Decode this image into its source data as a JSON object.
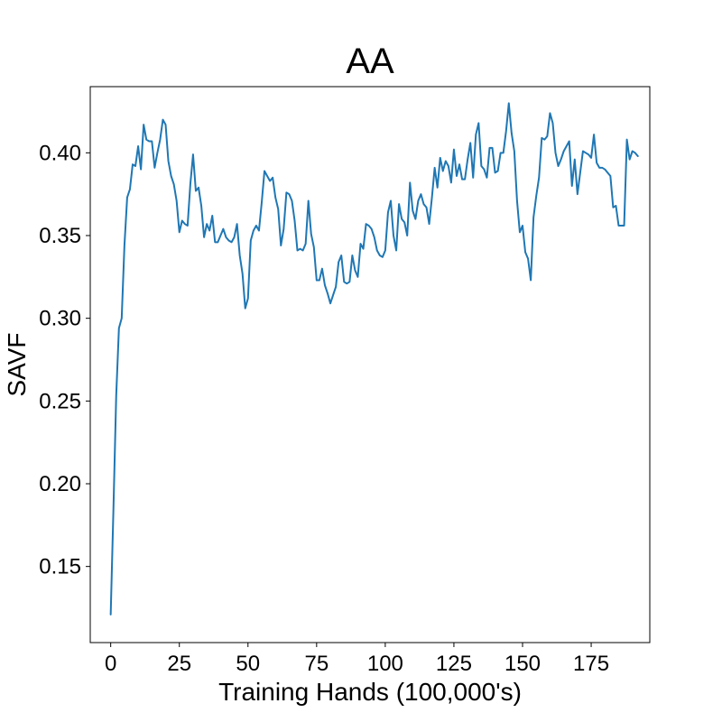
{
  "chart_data": {
    "type": "line",
    "title": "AA",
    "xlabel": "Training Hands (100,000's)",
    "ylabel": "SAVF",
    "xlim": [
      -7.45,
      196.35
    ],
    "ylim": [
      0.104,
      0.44
    ],
    "xticks": [
      0,
      25,
      50,
      75,
      100,
      125,
      150,
      175
    ],
    "yticks": [
      0.15,
      0.2,
      0.25,
      0.3,
      0.35,
      0.4
    ],
    "ytick_labels": [
      "0.15",
      "0.20",
      "0.25",
      "0.30",
      "0.35",
      "0.40"
    ],
    "grid": false,
    "legend": "none",
    "series": [
      {
        "color": "#1f77b4",
        "values": [
          0.121,
          0.185,
          0.253,
          0.294,
          0.3,
          0.344,
          0.373,
          0.378,
          0.393,
          0.392,
          0.404,
          0.39,
          0.417,
          0.408,
          0.407,
          0.407,
          0.391,
          0.4,
          0.408,
          0.42,
          0.417,
          0.395,
          0.386,
          0.381,
          0.371,
          0.352,
          0.359,
          0.357,
          0.356,
          0.381,
          0.399,
          0.377,
          0.379,
          0.368,
          0.349,
          0.357,
          0.353,
          0.362,
          0.346,
          0.346,
          0.35,
          0.354,
          0.349,
          0.347,
          0.346,
          0.349,
          0.357,
          0.338,
          0.327,
          0.306,
          0.312,
          0.347,
          0.353,
          0.356,
          0.353,
          0.37,
          0.389,
          0.386,
          0.383,
          0.385,
          0.373,
          0.366,
          0.344,
          0.354,
          0.376,
          0.375,
          0.371,
          0.359,
          0.341,
          0.342,
          0.341,
          0.345,
          0.371,
          0.351,
          0.343,
          0.323,
          0.323,
          0.33,
          0.32,
          0.315,
          0.309,
          0.314,
          0.319,
          0.334,
          0.338,
          0.322,
          0.321,
          0.322,
          0.338,
          0.329,
          0.325,
          0.345,
          0.342,
          0.357,
          0.356,
          0.354,
          0.349,
          0.341,
          0.338,
          0.337,
          0.341,
          0.364,
          0.371,
          0.35,
          0.341,
          0.369,
          0.36,
          0.358,
          0.35,
          0.382,
          0.365,
          0.36,
          0.371,
          0.375,
          0.369,
          0.367,
          0.357,
          0.373,
          0.391,
          0.379,
          0.397,
          0.389,
          0.395,
          0.392,
          0.382,
          0.402,
          0.386,
          0.393,
          0.384,
          0.384,
          0.396,
          0.406,
          0.385,
          0.411,
          0.418,
          0.392,
          0.39,
          0.385,
          0.403,
          0.403,
          0.388,
          0.389,
          0.4,
          0.4,
          0.413,
          0.43,
          0.412,
          0.401,
          0.371,
          0.352,
          0.356,
          0.34,
          0.336,
          0.323,
          0.361,
          0.374,
          0.385,
          0.409,
          0.408,
          0.41,
          0.424,
          0.418,
          0.4,
          0.392,
          0.396,
          0.401,
          0.404,
          0.407,
          0.38,
          0.396,
          0.375,
          0.388,
          0.401,
          0.4,
          0.399,
          0.397,
          0.411,
          0.394,
          0.391,
          0.391,
          0.39,
          0.388,
          0.386,
          0.367,
          0.368,
          0.356,
          0.356,
          0.356,
          0.408,
          0.396,
          0.401,
          0.4,
          0.398
        ]
      }
    ]
  }
}
